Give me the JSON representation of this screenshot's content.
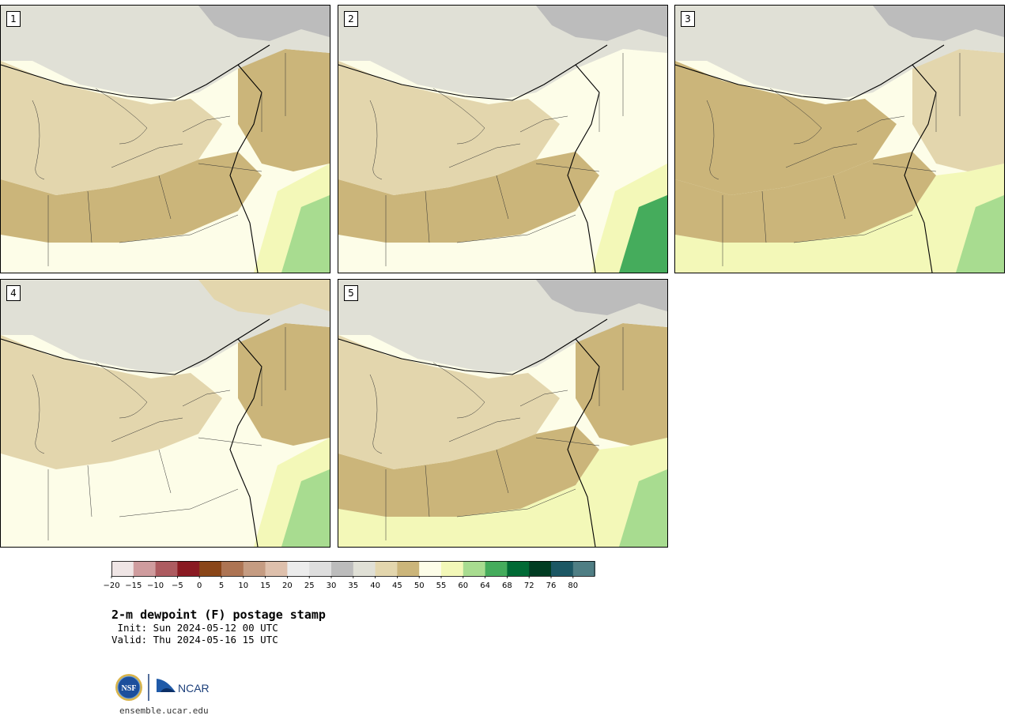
{
  "panels": [
    {
      "label": "1",
      "variant": 1
    },
    {
      "label": "2",
      "variant": 2
    },
    {
      "label": "3",
      "variant": 3
    },
    {
      "label": "4",
      "variant": 4
    },
    {
      "label": "5",
      "variant": 5
    }
  ],
  "colorbar": {
    "ticks": [
      "−20",
      "−15",
      "−10",
      "−5",
      "0",
      "5",
      "10",
      "15",
      "20",
      "25",
      "30",
      "35",
      "40",
      "45",
      "50",
      "55",
      "60",
      "64",
      "68",
      "72",
      "76",
      "80"
    ],
    "colors": [
      "#efe5e5",
      "#cf9c9e",
      "#ad5b60",
      "#8a1a22",
      "#8a4618",
      "#ad7453",
      "#c59c82",
      "#dec0ac",
      "#ececec",
      "#dedede",
      "#bcbcbc",
      "#e0e0d6",
      "#e3d6ad",
      "#cbb57a",
      "#fdfde8",
      "#f3f8b8",
      "#a8dc90",
      "#45ac5c",
      "#006a35",
      "#013c22",
      "#1c5764",
      "#4f7e84"
    ]
  },
  "title": "2-m dewpoint (F) postage stamp",
  "init": " Init: Sun 2024-05-12 00 UTC",
  "valid": "Valid: Thu 2024-05-16 15 UTC",
  "logos": {
    "nsf": "NSF",
    "ncar": "NCAR"
  },
  "url": "ensemble.ucar.edu"
}
